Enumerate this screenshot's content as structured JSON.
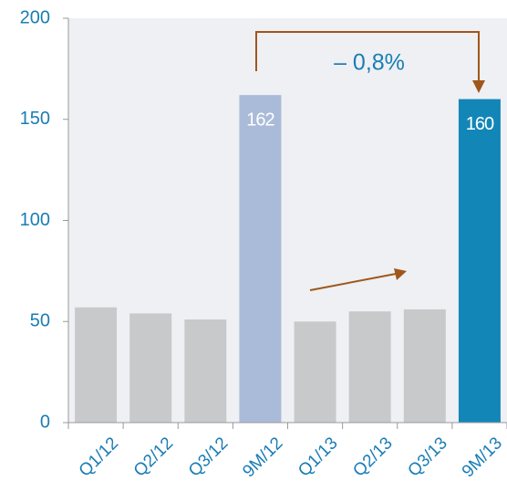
{
  "chart_data": {
    "type": "bar",
    "categories": [
      "Q1/12",
      "Q2/12",
      "Q3/12",
      "9M/12",
      "Q1/13",
      "Q2/13",
      "Q3/13",
      "9M/13"
    ],
    "values": [
      57,
      54,
      51,
      162,
      50,
      55,
      56,
      160
    ],
    "value_labels": [
      null,
      null,
      null,
      "162",
      null,
      null,
      null,
      "160"
    ],
    "colors": [
      "#c8c9cb",
      "#c8c9cb",
      "#c8c9cb",
      "#a9bbd8",
      "#c8c9cb",
      "#c8c9cb",
      "#c8c9cb",
      "#1386b8"
    ],
    "ylim": [
      0,
      200
    ],
    "yticks": [
      0,
      50,
      100,
      150,
      200
    ],
    "annotation": "– 0,8%"
  }
}
